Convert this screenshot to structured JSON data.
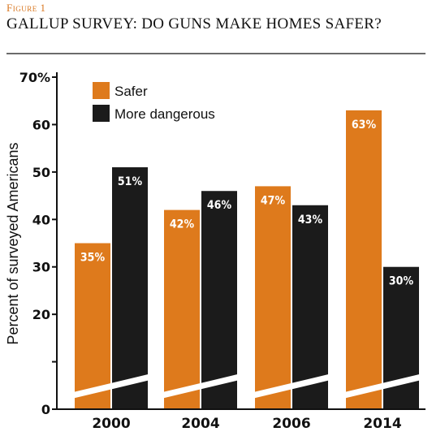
{
  "figure": {
    "label": "Figure 1",
    "title": "GALLUP SURVEY: DO GUNS MAKE HOMES SAFER?"
  },
  "colors": {
    "label": "#d9761f",
    "rule": "#6b6b6b",
    "safer": "#de7a1c",
    "more_dangerous": "#1b1b1b",
    "axis": "#111111"
  },
  "chart_data": {
    "type": "bar",
    "title": "GALLUP SURVEY: DO GUNS MAKE HOMES SAFER?",
    "categories": [
      "2000",
      "2004",
      "2006",
      "2014"
    ],
    "series": [
      {
        "name": "Safer",
        "values": [
          35,
          42,
          47,
          63
        ],
        "labels": [
          "35%",
          "42%",
          "47%",
          "63%"
        ],
        "color": "#de7a1c"
      },
      {
        "name": "More dangerous",
        "values": [
          51,
          46,
          43,
          30
        ],
        "labels": [
          "51%",
          "46%",
          "43%",
          "30%"
        ],
        "color": "#1b1b1b"
      }
    ],
    "ylabel": "Percent of surveyed Americans",
    "xlabel": "",
    "ylim": [
      0,
      70
    ],
    "yticks": [
      0,
      10,
      20,
      30,
      40,
      50,
      60,
      70
    ],
    "ytick_labels": [
      "0",
      "",
      "20",
      "30",
      "40",
      "50",
      "60",
      "70%"
    ],
    "axis_break": true,
    "grid": false,
    "legend": "top-left"
  }
}
